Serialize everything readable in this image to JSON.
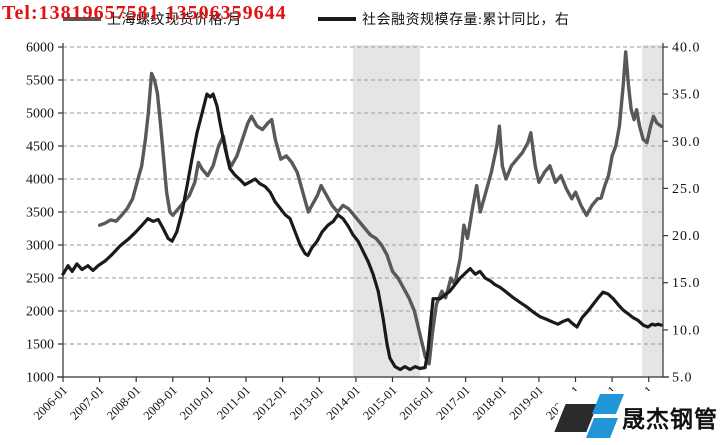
{
  "watermark": {
    "text": "Tel:13819657581 13506359644",
    "color": "#e01212"
  },
  "logo": {
    "text": "晟杰钢管",
    "dark_color": "#2b2b2b",
    "blue_color": "#2096d8"
  },
  "legend": {
    "items": [
      {
        "label": "上海螺纹现货价格:月",
        "color": "#595959"
      },
      {
        "label": "社会融资规模存量:累计同比，右",
        "color": "#1a1a1a"
      }
    ]
  },
  "chart_data": {
    "type": "line",
    "title": "",
    "xlabel": "",
    "ylabel_left": "",
    "ylabel_right": "",
    "grid": "horizontal-dashed",
    "legend_position": "top",
    "plot": {
      "x_left": 63,
      "x_right": 663,
      "y_top": 47,
      "y_bottom": 377,
      "x_domain": [
        2006.0,
        2022.39
      ]
    },
    "left_axis": {
      "range": [
        1000,
        6000
      ],
      "ticks": [
        "6000",
        "5500",
        "5000",
        "4500",
        "4000",
        "3500",
        "3000",
        "2500",
        "2000",
        "1500",
        "1000"
      ],
      "tick_values": [
        6000,
        5500,
        5000,
        4500,
        4000,
        3500,
        3000,
        2500,
        2000,
        1500,
        1000
      ]
    },
    "right_axis": {
      "range": [
        5,
        40
      ],
      "ticks": [
        "40.0",
        "35.0",
        "30.0",
        "25.0",
        "20.0",
        "15.0",
        "10.0",
        "5.0"
      ],
      "tick_values": [
        40,
        35,
        30,
        25,
        20,
        15,
        10,
        5
      ]
    },
    "x_axis": {
      "tick_years": [
        2006,
        2007,
        2008,
        2009,
        2010,
        2011,
        2012,
        2013,
        2014,
        2015,
        2016,
        2017,
        2018,
        2019,
        2020,
        2021,
        2022
      ],
      "labels": [
        "2006-01",
        "2007-01",
        "2008-01",
        "2009-01",
        "2010-01",
        "2011-01",
        "2012-01",
        "2013-01",
        "2014-01",
        "2015-01",
        "2016-01",
        "2017-01",
        "2018-01",
        "2019-01",
        "2020-01",
        "2021-01",
        "2022-01"
      ]
    },
    "shaded_bands": [
      {
        "from": 2013.92,
        "to": 2015.75,
        "color": "#e5e5e5"
      },
      {
        "from": 2021.82,
        "to": 2022.39,
        "color": "#e5e5e5"
      }
    ],
    "series": [
      {
        "name": "上海螺纹现货价格:月",
        "axis": "left",
        "color": "#595959",
        "width": 3.4,
        "points": [
          [
            2007.0,
            3300
          ],
          [
            2007.15,
            3330
          ],
          [
            2007.3,
            3380
          ],
          [
            2007.45,
            3360
          ],
          [
            2007.6,
            3450
          ],
          [
            2007.75,
            3550
          ],
          [
            2007.9,
            3700
          ],
          [
            2008.05,
            4000
          ],
          [
            2008.15,
            4200
          ],
          [
            2008.25,
            4600
          ],
          [
            2008.33,
            5000
          ],
          [
            2008.42,
            5600
          ],
          [
            2008.5,
            5500
          ],
          [
            2008.58,
            5300
          ],
          [
            2008.67,
            4800
          ],
          [
            2008.75,
            4300
          ],
          [
            2008.83,
            3800
          ],
          [
            2008.92,
            3500
          ],
          [
            2009.0,
            3450
          ],
          [
            2009.15,
            3550
          ],
          [
            2009.3,
            3650
          ],
          [
            2009.45,
            3750
          ],
          [
            2009.6,
            3950
          ],
          [
            2009.7,
            4250
          ],
          [
            2009.8,
            4150
          ],
          [
            2009.95,
            4050
          ],
          [
            2010.1,
            4200
          ],
          [
            2010.25,
            4500
          ],
          [
            2010.38,
            4650
          ],
          [
            2010.5,
            4300
          ],
          [
            2010.6,
            4200
          ],
          [
            2010.75,
            4350
          ],
          [
            2010.9,
            4600
          ],
          [
            2011.05,
            4850
          ],
          [
            2011.15,
            4950
          ],
          [
            2011.3,
            4800
          ],
          [
            2011.45,
            4750
          ],
          [
            2011.6,
            4850
          ],
          [
            2011.7,
            4900
          ],
          [
            2011.8,
            4600
          ],
          [
            2011.95,
            4300
          ],
          [
            2012.1,
            4350
          ],
          [
            2012.25,
            4250
          ],
          [
            2012.4,
            4100
          ],
          [
            2012.55,
            3800
          ],
          [
            2012.7,
            3500
          ],
          [
            2012.8,
            3600
          ],
          [
            2012.95,
            3750
          ],
          [
            2013.05,
            3900
          ],
          [
            2013.2,
            3750
          ],
          [
            2013.35,
            3600
          ],
          [
            2013.5,
            3500
          ],
          [
            2013.65,
            3600
          ],
          [
            2013.8,
            3550
          ],
          [
            2013.95,
            3450
          ],
          [
            2014.1,
            3350
          ],
          [
            2014.25,
            3250
          ],
          [
            2014.4,
            3150
          ],
          [
            2014.55,
            3100
          ],
          [
            2014.7,
            3000
          ],
          [
            2014.85,
            2850
          ],
          [
            2015.0,
            2600
          ],
          [
            2015.15,
            2500
          ],
          [
            2015.3,
            2350
          ],
          [
            2015.45,
            2200
          ],
          [
            2015.6,
            2000
          ],
          [
            2015.75,
            1650
          ],
          [
            2015.9,
            1300
          ],
          [
            2016.0,
            1200
          ],
          [
            2016.1,
            1700
          ],
          [
            2016.2,
            2100
          ],
          [
            2016.35,
            2300
          ],
          [
            2016.45,
            2200
          ],
          [
            2016.6,
            2500
          ],
          [
            2016.7,
            2400
          ],
          [
            2016.85,
            2800
          ],
          [
            2016.95,
            3300
          ],
          [
            2017.05,
            3100
          ],
          [
            2017.2,
            3600
          ],
          [
            2017.3,
            3900
          ],
          [
            2017.4,
            3500
          ],
          [
            2017.55,
            3800
          ],
          [
            2017.7,
            4100
          ],
          [
            2017.85,
            4500
          ],
          [
            2017.92,
            4800
          ],
          [
            2018.0,
            4200
          ],
          [
            2018.1,
            4000
          ],
          [
            2018.25,
            4200
          ],
          [
            2018.4,
            4300
          ],
          [
            2018.55,
            4400
          ],
          [
            2018.7,
            4550
          ],
          [
            2018.78,
            4700
          ],
          [
            2018.9,
            4200
          ],
          [
            2019.0,
            3950
          ],
          [
            2019.15,
            4100
          ],
          [
            2019.3,
            4200
          ],
          [
            2019.45,
            3950
          ],
          [
            2019.6,
            4050
          ],
          [
            2019.75,
            3850
          ],
          [
            2019.9,
            3700
          ],
          [
            2020.0,
            3800
          ],
          [
            2020.15,
            3600
          ],
          [
            2020.3,
            3450
          ],
          [
            2020.45,
            3600
          ],
          [
            2020.6,
            3700
          ],
          [
            2020.7,
            3710
          ],
          [
            2020.8,
            3900
          ],
          [
            2020.9,
            4050
          ],
          [
            2021.0,
            4350
          ],
          [
            2021.1,
            4500
          ],
          [
            2021.2,
            4800
          ],
          [
            2021.3,
            5400
          ],
          [
            2021.37,
            5925
          ],
          [
            2021.45,
            5400
          ],
          [
            2021.52,
            5050
          ],
          [
            2021.6,
            4900
          ],
          [
            2021.67,
            5050
          ],
          [
            2021.75,
            4800
          ],
          [
            2021.85,
            4600
          ],
          [
            2021.95,
            4550
          ],
          [
            2022.05,
            4800
          ],
          [
            2022.13,
            4950
          ],
          [
            2022.22,
            4850
          ],
          [
            2022.34,
            4800
          ]
        ]
      },
      {
        "name": "社会融资规模存量:累计同比，右",
        "axis": "right",
        "color": "#1a1a1a",
        "width": 3.2,
        "points": [
          [
            2006.0,
            15.9
          ],
          [
            2006.14,
            16.8
          ],
          [
            2006.25,
            16.2
          ],
          [
            2006.38,
            17.0
          ],
          [
            2006.52,
            16.4
          ],
          [
            2006.68,
            16.8
          ],
          [
            2006.82,
            16.3
          ],
          [
            2006.96,
            16.8
          ],
          [
            2007.15,
            17.3
          ],
          [
            2007.34,
            18.0
          ],
          [
            2007.56,
            18.9
          ],
          [
            2007.78,
            19.6
          ],
          [
            2007.97,
            20.3
          ],
          [
            2008.16,
            21.1
          ],
          [
            2008.32,
            21.8
          ],
          [
            2008.46,
            21.5
          ],
          [
            2008.6,
            21.7
          ],
          [
            2008.73,
            20.8
          ],
          [
            2008.87,
            19.7
          ],
          [
            2008.98,
            19.4
          ],
          [
            2009.11,
            20.4
          ],
          [
            2009.25,
            22.5
          ],
          [
            2009.39,
            25.3
          ],
          [
            2009.52,
            28.1
          ],
          [
            2009.66,
            30.9
          ],
          [
            2009.8,
            33.0
          ],
          [
            2009.93,
            35.0
          ],
          [
            2010.02,
            34.7
          ],
          [
            2010.1,
            35.0
          ],
          [
            2010.21,
            33.7
          ],
          [
            2010.29,
            32.0
          ],
          [
            2010.43,
            29.2
          ],
          [
            2010.56,
            27.1
          ],
          [
            2010.7,
            26.4
          ],
          [
            2010.84,
            25.9
          ],
          [
            2010.97,
            25.4
          ],
          [
            2011.11,
            25.7
          ],
          [
            2011.25,
            26.0
          ],
          [
            2011.38,
            25.5
          ],
          [
            2011.52,
            25.2
          ],
          [
            2011.66,
            24.6
          ],
          [
            2011.79,
            23.6
          ],
          [
            2011.93,
            22.9
          ],
          [
            2012.07,
            22.2
          ],
          [
            2012.2,
            21.8
          ],
          [
            2012.34,
            20.4
          ],
          [
            2012.48,
            19.0
          ],
          [
            2012.61,
            18.1
          ],
          [
            2012.69,
            17.9
          ],
          [
            2012.8,
            18.7
          ],
          [
            2012.94,
            19.4
          ],
          [
            2013.08,
            20.4
          ],
          [
            2013.24,
            21.1
          ],
          [
            2013.38,
            21.5
          ],
          [
            2013.51,
            22.2
          ],
          [
            2013.65,
            21.8
          ],
          [
            2013.79,
            21.0
          ],
          [
            2013.92,
            20.1
          ],
          [
            2014.06,
            19.4
          ],
          [
            2014.2,
            18.3
          ],
          [
            2014.33,
            17.3
          ],
          [
            2014.47,
            15.9
          ],
          [
            2014.61,
            14.1
          ],
          [
            2014.74,
            11.3
          ],
          [
            2014.85,
            8.5
          ],
          [
            2014.93,
            7.0
          ],
          [
            2015.07,
            6.1
          ],
          [
            2015.21,
            5.8
          ],
          [
            2015.34,
            6.1
          ],
          [
            2015.48,
            5.8
          ],
          [
            2015.62,
            6.1
          ],
          [
            2015.75,
            5.9
          ],
          [
            2015.89,
            6.0
          ],
          [
            2015.97,
            7.8
          ],
          [
            2016.03,
            10.3
          ],
          [
            2016.11,
            13.3
          ],
          [
            2016.3,
            13.3
          ],
          [
            2016.57,
            14.1
          ],
          [
            2016.85,
            15.5
          ],
          [
            2017.12,
            16.5
          ],
          [
            2017.26,
            15.9
          ],
          [
            2017.39,
            16.2
          ],
          [
            2017.53,
            15.5
          ],
          [
            2017.67,
            15.2
          ],
          [
            2017.8,
            14.8
          ],
          [
            2017.94,
            14.5
          ],
          [
            2018.08,
            14.1
          ],
          [
            2018.27,
            13.5
          ],
          [
            2018.49,
            12.9
          ],
          [
            2018.68,
            12.4
          ],
          [
            2018.84,
            11.9
          ],
          [
            2019.03,
            11.4
          ],
          [
            2019.22,
            11.1
          ],
          [
            2019.39,
            10.8
          ],
          [
            2019.52,
            10.6
          ],
          [
            2019.66,
            10.9
          ],
          [
            2019.8,
            11.1
          ],
          [
            2019.91,
            10.7
          ],
          [
            2020.04,
            10.3
          ],
          [
            2020.18,
            11.3
          ],
          [
            2020.34,
            12.0
          ],
          [
            2020.48,
            12.7
          ],
          [
            2020.62,
            13.4
          ],
          [
            2020.75,
            14.0
          ],
          [
            2020.89,
            13.8
          ],
          [
            2021.03,
            13.3
          ],
          [
            2021.16,
            12.7
          ],
          [
            2021.3,
            12.1
          ],
          [
            2021.44,
            11.7
          ],
          [
            2021.57,
            11.3
          ],
          [
            2021.71,
            11.0
          ],
          [
            2021.85,
            10.5
          ],
          [
            2021.98,
            10.3
          ],
          [
            2022.09,
            10.6
          ],
          [
            2022.18,
            10.5
          ],
          [
            2022.26,
            10.6
          ],
          [
            2022.34,
            10.5
          ]
        ]
      }
    ]
  }
}
